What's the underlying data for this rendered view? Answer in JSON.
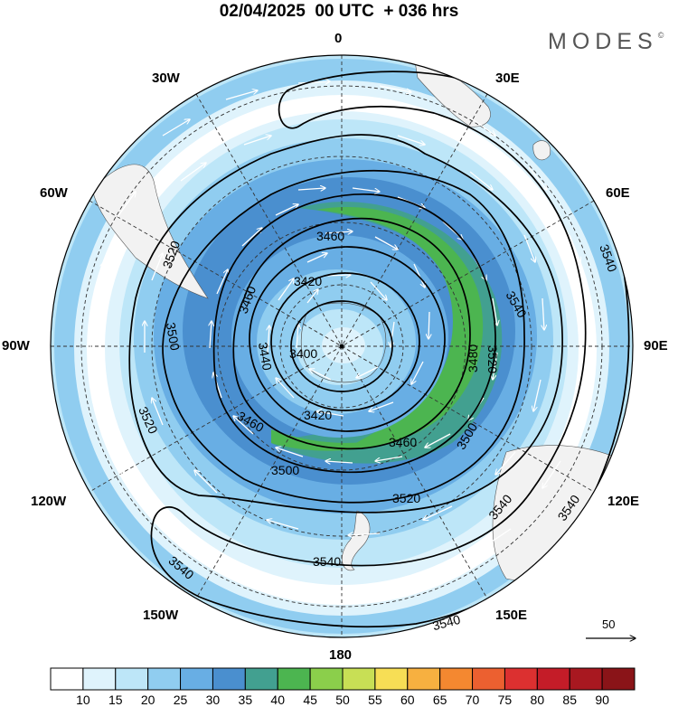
{
  "header": {
    "title": "02/04/2025  00 UTC  + 036 hrs",
    "brand": "MODES",
    "brand_mark": "©"
  },
  "map": {
    "projection": "south-polar-stereographic",
    "longitude_labels": [
      "0",
      "30E",
      "60E",
      "90E",
      "120E",
      "150E",
      "180",
      "150W",
      "120W",
      "90W",
      "60W",
      "30W"
    ],
    "contour_labels": [
      "3400",
      "3420",
      "3420",
      "3440",
      "3460",
      "3460",
      "3460",
      "3460",
      "3480",
      "3500",
      "3500",
      "3500",
      "3520",
      "3520",
      "3520",
      "3520",
      "3540",
      "3540",
      "3540",
      "3540",
      "3540",
      "3540"
    ],
    "wind_reference": {
      "label": "50"
    },
    "land_color": "#f2f2f2",
    "contour_color": "#000000"
  },
  "colorbar": {
    "labels": [
      "10",
      "15",
      "20",
      "25",
      "30",
      "35",
      "40",
      "45",
      "50",
      "55",
      "60",
      "65",
      "70",
      "75",
      "80",
      "85",
      "90"
    ],
    "colors": [
      "#ffffff",
      "#dff3fc",
      "#bde6f8",
      "#90cdf0",
      "#68aee4",
      "#4a8fcf",
      "#42a090",
      "#4cb550",
      "#8bcf4b",
      "#c8df55",
      "#f7de55",
      "#f7b040",
      "#f48830",
      "#ec6030",
      "#dc3030",
      "#c41c28",
      "#a81820",
      "#8a1418"
    ]
  }
}
